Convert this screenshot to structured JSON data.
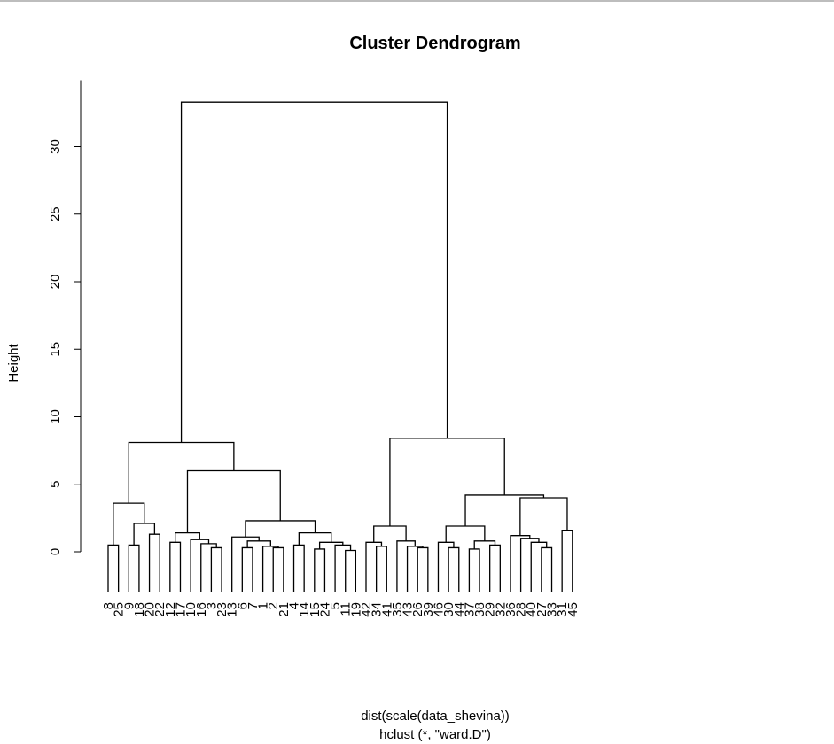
{
  "chart_data": {
    "type": "dendrogram",
    "title": "Cluster Dendrogram",
    "ylabel": "Height",
    "xlabel_line1": "dist(scale(data_shevina))",
    "xlabel_line2": "hclust (*, \"ward.D\")",
    "ylim": [
      0,
      33.3
    ],
    "yticks": [
      0,
      5,
      10,
      15,
      20,
      25,
      30
    ],
    "leaves": [
      "8",
      "25",
      "9",
      "18",
      "20",
      "22",
      "12",
      "17",
      "10",
      "16",
      "3",
      "23",
      "13",
      "6",
      "7",
      "1",
      "2",
      "21",
      "4",
      "14",
      "15",
      "24",
      "5",
      "11",
      "19",
      "42",
      "34",
      "41",
      "35",
      "43",
      "26",
      "39",
      "46",
      "30",
      "44",
      "37",
      "38",
      "29",
      "32",
      "36",
      "28",
      "40",
      "27",
      "33",
      "31",
      "45"
    ],
    "merges": [
      {
        "left": "8",
        "right": "25",
        "height": 0.5
      },
      {
        "left": "9",
        "right": "18",
        "height": 0.5
      },
      {
        "left": "20",
        "right": "22",
        "height": 1.3
      },
      {
        "left": "9,18",
        "right": "20,22",
        "height": 2.1
      },
      {
        "left": "8,25",
        "right": "9,18,20,22",
        "height": 3.6
      },
      {
        "left": "3",
        "right": "23",
        "height": 0.3
      },
      {
        "left": "16",
        "right": "3,23",
        "height": 0.6
      },
      {
        "left": "10",
        "right": "16,3,23",
        "height": 0.9
      },
      {
        "left": "12",
        "right": "17",
        "height": 0.7
      },
      {
        "left": "12,17",
        "right": "10,16,3,23",
        "height": 1.4
      },
      {
        "left": "6",
        "right": "7",
        "height": 0.3
      },
      {
        "left": "2",
        "right": "21",
        "height": 0.3
      },
      {
        "left": "1",
        "right": "2,21",
        "height": 0.4
      },
      {
        "left": "6,7",
        "right": "1,2,21",
        "height": 0.8
      },
      {
        "left": "13",
        "right": "6,7,1,2,21",
        "height": 1.1
      },
      {
        "left": "4",
        "right": "14",
        "height": 0.5
      },
      {
        "left": "11",
        "right": "19",
        "height": 0.1
      },
      {
        "left": "5",
        "right": "11,19",
        "height": 0.5
      },
      {
        "left": "15",
        "right": "24",
        "height": 0.2
      },
      {
        "left": "15,24",
        "right": "5,11,19",
        "height": 0.7
      },
      {
        "left": "4,14",
        "right": "15,24,5,11,19",
        "height": 1.4
      },
      {
        "left": "13..21",
        "right": "4..19",
        "height": 2.3
      },
      {
        "left": "12..23",
        "right": "13..19",
        "height": 6.0
      },
      {
        "left": "8..22",
        "right": "12..19",
        "height": 8.1
      },
      {
        "left": "34",
        "right": "41",
        "height": 0.4
      },
      {
        "left": "42",
        "right": "34,41",
        "height": 0.7
      },
      {
        "left": "26",
        "right": "39",
        "height": 0.3
      },
      {
        "left": "43",
        "right": "26,39",
        "height": 0.4
      },
      {
        "left": "35",
        "right": "43,26,39",
        "height": 0.8
      },
      {
        "left": "42,34,41",
        "right": "35,43,26,39",
        "height": 1.9
      },
      {
        "left": "30",
        "right": "44",
        "height": 0.3
      },
      {
        "left": "46",
        "right": "30,44",
        "height": 0.7
      },
      {
        "left": "37",
        "right": "38",
        "height": 0.2
      },
      {
        "left": "29",
        "right": "32",
        "height": 0.5
      },
      {
        "left": "37,38",
        "right": "29,32",
        "height": 0.8
      },
      {
        "left": "46,30,44",
        "right": "37,38,29,32",
        "height": 1.9
      },
      {
        "left": "27",
        "right": "33",
        "height": 0.3
      },
      {
        "left": "40",
        "right": "27,33",
        "height": 0.7
      },
      {
        "left": "28",
        "right": "40,27,33",
        "height": 1.0
      },
      {
        "left": "36",
        "right": "28,40,27,33",
        "height": 1.2
      },
      {
        "left": "31",
        "right": "45",
        "height": 1.6
      },
      {
        "left": "36..33",
        "right": "31,45",
        "height": 4.0
      },
      {
        "left": "46..32",
        "right": "36..45",
        "height": 4.2
      },
      {
        "left": "42..39",
        "right": "46..45",
        "height": 8.4
      },
      {
        "left": "8..19",
        "right": "42..45",
        "height": 33.3
      }
    ]
  }
}
